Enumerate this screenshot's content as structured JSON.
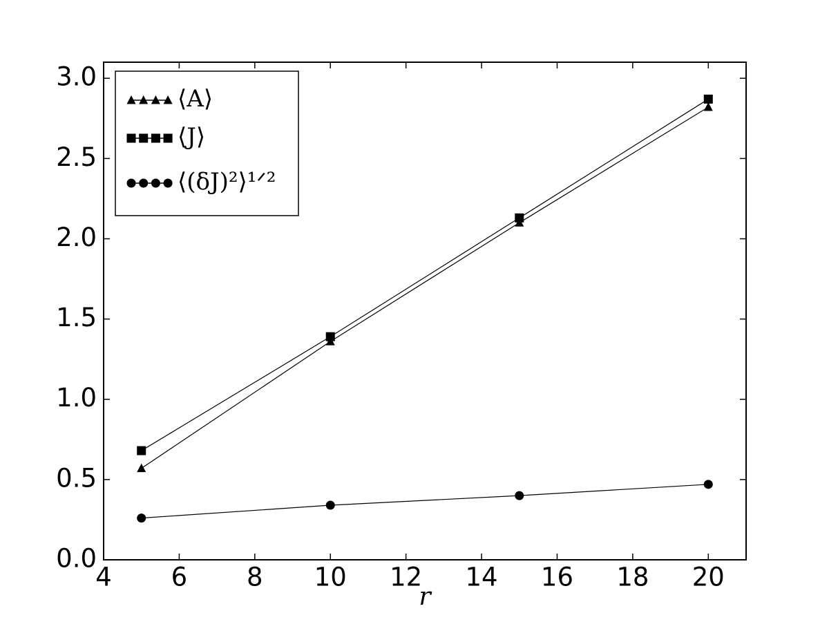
{
  "chart_data": {
    "type": "line",
    "x": [
      5,
      10,
      15,
      20
    ],
    "x_label": "r",
    "series": [
      {
        "name": "⟨A⟩",
        "color": "#000000",
        "marker": "triangle",
        "values": [
          0.57,
          1.36,
          2.1,
          2.82
        ]
      },
      {
        "name": "⟨J⟩",
        "color": "#000000",
        "marker": "square",
        "values": [
          0.68,
          1.39,
          2.13,
          2.87
        ]
      },
      {
        "name": "⟨(δJ)²⟩¹ᐟ²",
        "color": "#000000",
        "marker": "circle",
        "values": [
          0.26,
          0.34,
          0.4,
          0.47
        ]
      }
    ],
    "xlim": [
      4,
      21
    ],
    "xticks": [
      4,
      6,
      8,
      10,
      12,
      14,
      16,
      18,
      20
    ],
    "ylim": [
      0,
      3.1
    ],
    "yticks": [
      {
        "value": 0,
        "label": "0.0"
      },
      0.5,
      {
        "value": 1,
        "label": "1.0"
      },
      1.5,
      {
        "value": 2,
        "label": "2.0"
      },
      2.5,
      {
        "value": 3,
        "label": "3.0"
      }
    ],
    "grid": false,
    "legend": "upper left"
  }
}
